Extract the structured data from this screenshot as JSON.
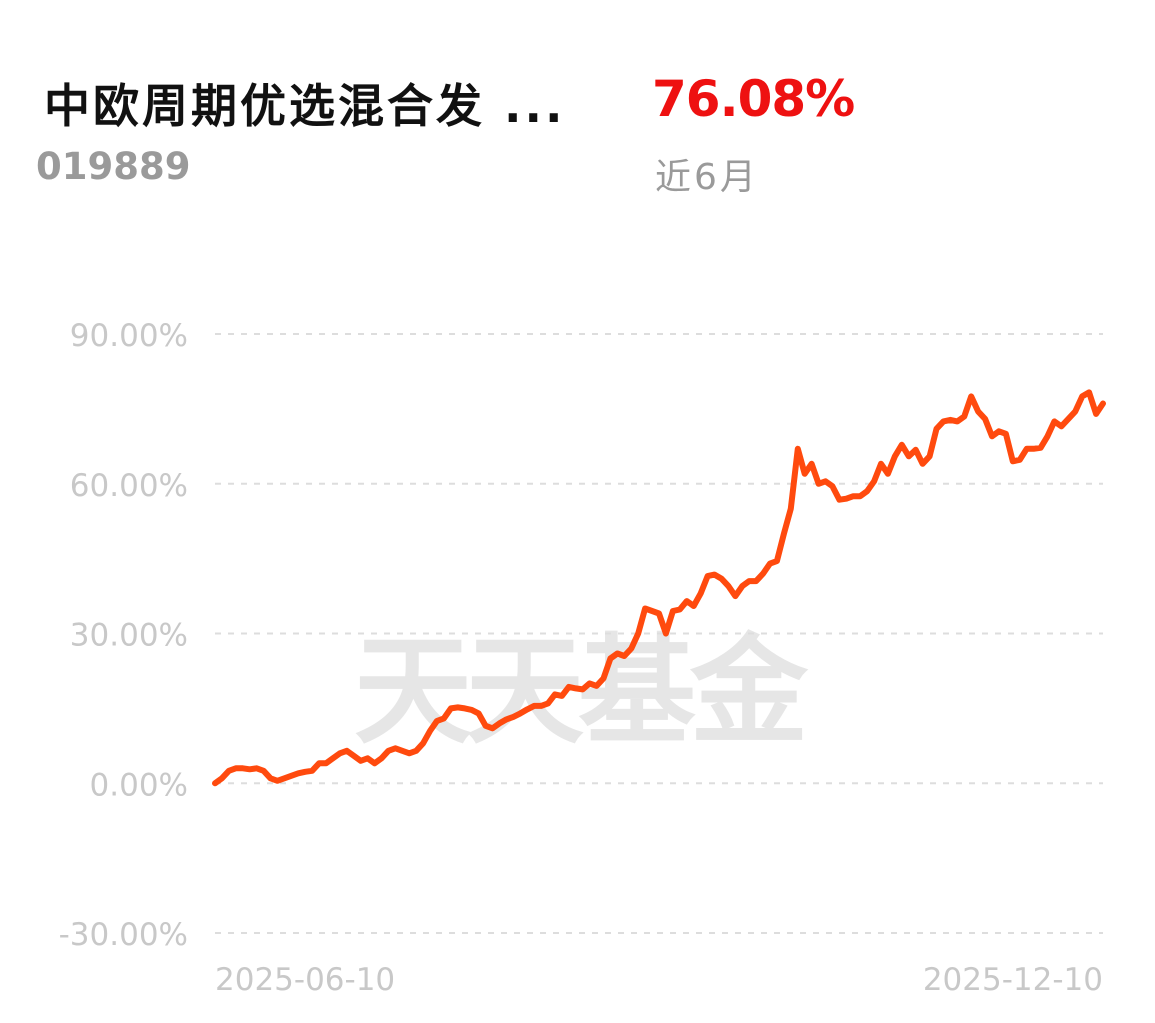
{
  "header": {
    "fund_name": "中欧周期优选混合发 ...",
    "fund_code": "019889",
    "return_value": "76.08%",
    "return_period": "近6月"
  },
  "watermark": "天天基金",
  "colors": {
    "line": "#ff4a0e",
    "return": "#ee1111",
    "muted": "#9a9a9a",
    "axis": "#c8c8c8",
    "grid": "#dddddd",
    "watermark": "#e6e6e6"
  },
  "chart_data": {
    "type": "line",
    "ylim": [
      -30,
      90
    ],
    "yticks": [
      90,
      60,
      30,
      0,
      -30
    ],
    "ytick_labels": [
      "90.00%",
      "60.00%",
      "30.00%",
      "0.00%",
      "-30.00%"
    ],
    "xtick_labels": [
      "2025-06-10",
      "2025-12-10"
    ],
    "grid": true,
    "series": [
      {
        "values": [
          0,
          1,
          2.5,
          3,
          3,
          2.8,
          3,
          2.5,
          1,
          0.5,
          1,
          1.5,
          2,
          2.3,
          2.5,
          4,
          4,
          5,
          6,
          6.5,
          5.5,
          4.5,
          5,
          4,
          5,
          6.5,
          7,
          6.5,
          6,
          6.5,
          8,
          10.5,
          12.5,
          13,
          15,
          15.2,
          15,
          14.7,
          14,
          11.5,
          11,
          12,
          12.8,
          13.3,
          14,
          14.8,
          15.5,
          15.5,
          16,
          17.8,
          17.5,
          19.3,
          19,
          18.8,
          20,
          19.5,
          21,
          25,
          26,
          25.5,
          27,
          30,
          35,
          34.5,
          34,
          30,
          34.5,
          34.8,
          36.5,
          35.5,
          38,
          41.5,
          41.8,
          41,
          39.5,
          37.5,
          39.5,
          40.5,
          40.5,
          42,
          44,
          44.5,
          50,
          55,
          67,
          62,
          64,
          60,
          60.5,
          59.5,
          56.8,
          57,
          57.5,
          57.5,
          58.5,
          60.5,
          64,
          62,
          65.5,
          67.8,
          65.5,
          66.8,
          64,
          65.5,
          71,
          72.5,
          72.8,
          72.5,
          73.5,
          77.5,
          74.5,
          73,
          69.5,
          70.5,
          70,
          64.5,
          64.8,
          67,
          67,
          67.2,
          69.5,
          72.5,
          71.5,
          73,
          74.5,
          77.5,
          78.3,
          74,
          76.08
        ]
      }
    ]
  }
}
